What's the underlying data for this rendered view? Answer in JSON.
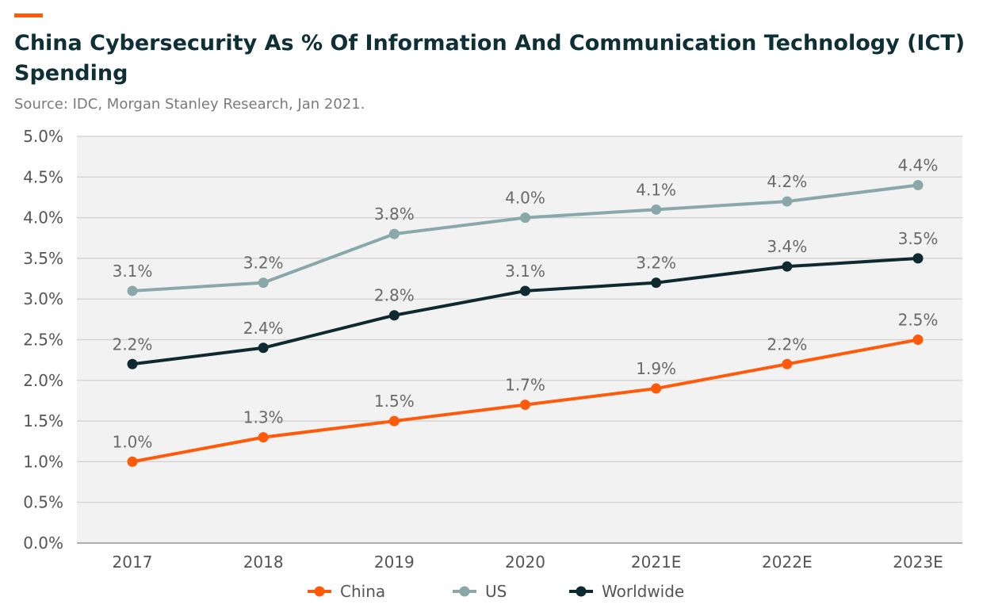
{
  "title": "China Cybersecurity As % Of Information And Communication Technology (ICT) Spending",
  "subtitle": "Source: IDC, Morgan Stanley Research, Jan 2021.",
  "colors": {
    "accent": "#FF5A0A",
    "title": "#0E2F35",
    "plot_bg": "#F2F2F2",
    "grid": "#CFCFCF",
    "china": "#FF5A0A",
    "us": "#8AA8A9",
    "worldwide": "#0E2A30"
  },
  "chart_data": {
    "type": "line",
    "categories": [
      "2017",
      "2018",
      "2019",
      "2020",
      "2021E",
      "2022E",
      "2023E"
    ],
    "ylim": [
      0,
      5.0
    ],
    "yticks": [
      "0.0%",
      "0.5%",
      "1.0%",
      "1.5%",
      "2.0%",
      "2.5%",
      "3.0%",
      "3.5%",
      "4.0%",
      "4.5%",
      "5.0%"
    ],
    "grid": true,
    "legend": "bottom",
    "series": [
      {
        "key": "us",
        "name": "US",
        "values": [
          3.1,
          3.2,
          3.8,
          4.0,
          4.1,
          4.2,
          4.4
        ],
        "labels": [
          "3.1%",
          "3.2%",
          "3.8%",
          "4.0%",
          "4.1%",
          "4.2%",
          "4.4%"
        ]
      },
      {
        "key": "worldwide",
        "name": "Worldwide",
        "values": [
          2.2,
          2.4,
          2.8,
          3.1,
          3.2,
          3.4,
          3.5
        ],
        "labels": [
          "2.2%",
          "2.4%",
          "2.8%",
          "3.1%",
          "3.2%",
          "3.4%",
          "3.5%"
        ]
      },
      {
        "key": "china",
        "name": "China",
        "values": [
          1.0,
          1.3,
          1.5,
          1.7,
          1.9,
          2.2,
          2.5
        ],
        "labels": [
          "1.0%",
          "1.3%",
          "1.5%",
          "1.7%",
          "1.9%",
          "2.2%",
          "2.5%"
        ]
      }
    ],
    "legend_order": [
      "china",
      "us",
      "worldwide"
    ]
  }
}
